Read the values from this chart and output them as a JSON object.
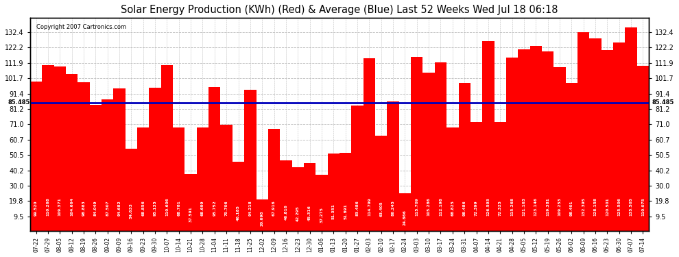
{
  "title": "Solar Energy Production (KWh) (Red) & Average (Blue) Last 52 Weeks Wed Jul 18 06:18",
  "copyright": "Copyright 2007 Cartronics.com",
  "average": 85.485,
  "bar_color": "#ff0000",
  "avg_line_color": "#0000bb",
  "background_color": "#ffffff",
  "plot_bg_color": "#ffffff",
  "grid_color": "#bbbbbb",
  "ylim_max": 142,
  "yticks": [
    9.5,
    19.8,
    30.0,
    40.2,
    50.5,
    60.7,
    71.0,
    81.2,
    91.4,
    101.7,
    111.9,
    122.2,
    132.4
  ],
  "categories": [
    "07-22",
    "07-29",
    "08-05",
    "08-12",
    "08-19",
    "08-26",
    "09-02",
    "09-09",
    "09-16",
    "09-23",
    "09-30",
    "10-07",
    "10-14",
    "10-21",
    "10-28",
    "11-04",
    "11-11",
    "11-18",
    "11-25",
    "12-02",
    "12-09",
    "12-16",
    "12-23",
    "12-30",
    "01-06",
    "01-13",
    "01-20",
    "01-27",
    "02-03",
    "02-10",
    "02-17",
    "02-24",
    "03-03",
    "03-10",
    "03-17",
    "03-24",
    "03-31",
    "04-07",
    "04-14",
    "04-21",
    "04-28",
    "05-05",
    "05-12",
    "05-19",
    "05-26",
    "06-02",
    "06-09",
    "06-16",
    "06-23",
    "06-30",
    "07-07",
    "07-14"
  ],
  "values": [
    99.52,
    110.268,
    109.371,
    104.664,
    98.883,
    84.049,
    87.507,
    94.682,
    54.633,
    68.856,
    95.135,
    110.606,
    68.781,
    37.591,
    68.699,
    95.752,
    70.706,
    46.185,
    94.218,
    20.698,
    67.916,
    46.816,
    42.295,
    45.316,
    37.275,
    51.351,
    51.891,
    83.486,
    114.799,
    63.405,
    86.245,
    24.866,
    115.709,
    105.286,
    112.198,
    68.825,
    98.486,
    72.399,
    126.593,
    72.325,
    115.268,
    121.163,
    123.146,
    119.381,
    109.253,
    98.401,
    132.395,
    128.158,
    120.501,
    125.506,
    135.505,
    110.075
  ]
}
